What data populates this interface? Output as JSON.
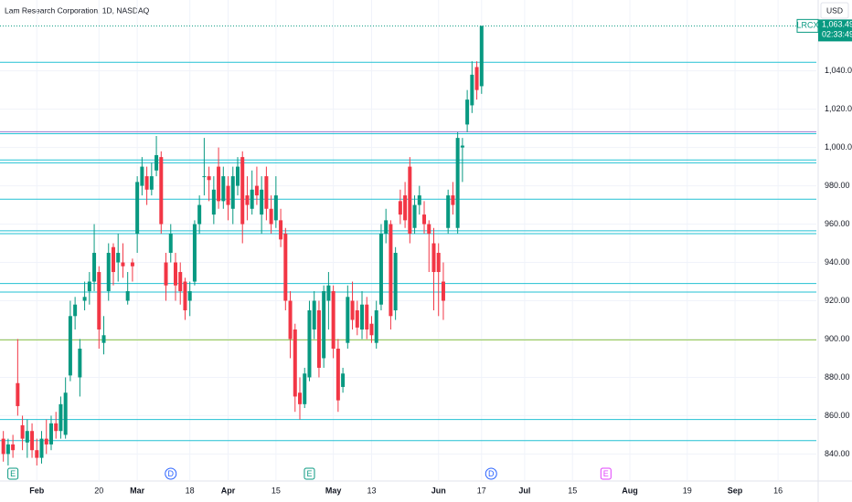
{
  "chart_data": {
    "type": "candlestick",
    "title": "Lam Research Corporation, 1D, NASDAQ",
    "currency": "USD",
    "symbol": "LRCX",
    "last_price": {
      "value": 1063.49,
      "label": "1,063.49"
    },
    "countdown": "02:33:49",
    "up_color": "#089981",
    "down_color": "#f23645",
    "ylim": [
      834,
      1077
    ],
    "xlim": [
      -0.7,
      170
    ],
    "yticks": [
      {
        "value": 840,
        "label": "840.00"
      },
      {
        "value": 860,
        "label": "860.00"
      },
      {
        "value": 880,
        "label": "880.00"
      },
      {
        "value": 900,
        "label": "900.00"
      },
      {
        "value": 920,
        "label": "920.00"
      },
      {
        "value": 940,
        "label": "940.00"
      },
      {
        "value": 960,
        "label": "960.00"
      },
      {
        "value": 980,
        "label": "980.00"
      },
      {
        "value": 1000,
        "label": "1,000.00"
      },
      {
        "value": 1020,
        "label": "1,020.00"
      },
      {
        "value": 1040,
        "label": "1,040.00"
      }
    ],
    "xticks": [
      {
        "value": 7,
        "label": "Feb"
      },
      {
        "value": 20,
        "label": "20"
      },
      {
        "value": 28,
        "label": "Mar"
      },
      {
        "value": 39,
        "label": "18"
      },
      {
        "value": 47,
        "label": "Apr"
      },
      {
        "value": 57,
        "label": "15"
      },
      {
        "value": 69,
        "label": "May"
      },
      {
        "value": 77,
        "label": "13"
      },
      {
        "value": 91,
        "label": "Jun"
      },
      {
        "value": 100,
        "label": "17"
      },
      {
        "value": 109,
        "label": "Jul"
      },
      {
        "value": 119,
        "label": "15"
      },
      {
        "value": 131,
        "label": "Aug"
      },
      {
        "value": 143,
        "label": "19"
      },
      {
        "value": 153,
        "label": "Sep"
      },
      {
        "value": 162,
        "label": "16"
      }
    ],
    "grid": true,
    "candles": [
      [
        848,
        852,
        836,
        840
      ],
      [
        840,
        848,
        834,
        845
      ],
      [
        845,
        850,
        838,
        842
      ],
      [
        877,
        900,
        860,
        865
      ],
      [
        855,
        860,
        842,
        848
      ],
      [
        846,
        858,
        838,
        852
      ],
      [
        852,
        856,
        838,
        842
      ],
      [
        842,
        848,
        834,
        838
      ],
      [
        838,
        852,
        835,
        848
      ],
      [
        848,
        858,
        840,
        845
      ],
      [
        845,
        860,
        842,
        856
      ],
      [
        856,
        862,
        848,
        852
      ],
      [
        852,
        870,
        848,
        866
      ],
      [
        850,
        880,
        848,
        872
      ],
      [
        881,
        920,
        878,
        912
      ],
      [
        912,
        922,
        905,
        918
      ],
      [
        880,
        900,
        870,
        895
      ],
      [
        920,
        930,
        915,
        922
      ],
      [
        925,
        935,
        918,
        930
      ],
      [
        930,
        960,
        925,
        945
      ],
      [
        935,
        938,
        895,
        905
      ],
      [
        898,
        912,
        892,
        902
      ],
      [
        925,
        950,
        920,
        945
      ],
      [
        948,
        950,
        928,
        935
      ],
      [
        940,
        955,
        930,
        945
      ],
      [
        940,
        950,
        932,
        938
      ],
      [
        920,
        935,
        918,
        925
      ],
      [
        940,
        942,
        930,
        938
      ],
      [
        955,
        985,
        945,
        982
      ],
      [
        980,
        995,
        975,
        990
      ],
      [
        985,
        990,
        970,
        978
      ],
      [
        978,
        992,
        975,
        985
      ],
      [
        988,
        1006,
        985,
        996
      ],
      [
        995,
        998,
        955,
        960
      ],
      [
        940,
        945,
        920,
        928
      ],
      [
        945,
        960,
        940,
        955
      ],
      [
        940,
        945,
        920,
        928
      ],
      [
        935,
        940,
        918,
        925
      ],
      [
        930,
        932,
        910,
        915
      ],
      [
        920,
        930,
        912,
        925
      ],
      [
        930,
        962,
        928,
        960
      ],
      [
        960,
        975,
        955,
        970
      ],
      [
        985,
        1005,
        975,
        985
      ],
      [
        985,
        990,
        972,
        983
      ],
      [
        965,
        985,
        960,
        978
      ],
      [
        990,
        1000,
        968,
        972
      ],
      [
        972,
        990,
        968,
        985
      ],
      [
        980,
        985,
        962,
        970
      ],
      [
        968,
        990,
        960,
        985
      ],
      [
        980,
        995,
        975,
        990
      ],
      [
        995,
        998,
        950,
        960
      ],
      [
        975,
        985,
        962,
        970
      ],
      [
        968,
        988,
        965,
        978
      ],
      [
        980,
        990,
        970,
        975
      ],
      [
        965,
        985,
        955,
        978
      ],
      [
        985,
        990,
        962,
        968
      ],
      [
        968,
        975,
        955,
        960
      ],
      [
        962,
        985,
        958,
        975
      ],
      [
        962,
        968,
        948,
        952
      ],
      [
        955,
        958,
        915,
        920
      ],
      [
        920,
        925,
        890,
        900
      ],
      [
        905,
        908,
        862,
        870
      ],
      [
        872,
        880,
        858,
        866
      ],
      [
        866,
        885,
        864,
        882
      ],
      [
        880,
        920,
        878,
        915
      ],
      [
        905,
        925,
        900,
        920
      ],
      [
        915,
        920,
        880,
        885
      ],
      [
        890,
        928,
        885,
        925
      ],
      [
        920,
        935,
        905,
        928
      ],
      [
        925,
        928,
        890,
        895
      ],
      [
        895,
        900,
        862,
        868
      ],
      [
        875,
        885,
        872,
        882
      ],
      [
        898,
        928,
        895,
        922
      ],
      [
        920,
        930,
        905,
        910
      ],
      [
        915,
        920,
        902,
        906
      ],
      [
        905,
        925,
        900,
        918
      ],
      [
        918,
        922,
        900,
        905
      ],
      [
        908,
        912,
        898,
        902
      ],
      [
        898,
        920,
        895,
        915
      ],
      [
        918,
        960,
        915,
        955
      ],
      [
        955,
        968,
        950,
        962
      ],
      [
        960,
        962,
        905,
        912
      ],
      [
        915,
        948,
        910,
        945
      ],
      [
        972,
        978,
        960,
        965
      ],
      [
        975,
        982,
        958,
        962
      ],
      [
        990,
        995,
        950,
        955
      ],
      [
        958,
        975,
        955,
        970
      ],
      [
        970,
        980,
        965,
        975
      ],
      [
        965,
        972,
        955,
        960
      ],
      [
        960,
        962,
        935,
        955
      ],
      [
        950,
        958,
        915,
        935
      ],
      [
        945,
        950,
        912,
        935
      ],
      [
        930,
        940,
        910,
        920
      ],
      [
        958,
        978,
        955,
        975
      ],
      [
        975,
        982,
        965,
        970
      ],
      [
        958,
        1008,
        955,
        1005
      ],
      [
        1000,
        1005,
        982,
        1001
      ],
      [
        1012,
        1030,
        1008,
        1025
      ],
      [
        1022,
        1045,
        1018,
        1038
      ],
      [
        1042,
        1045,
        1025,
        1030
      ],
      [
        1032,
        1063.49,
        1028,
        1063.49
      ]
    ],
    "levels": [
      {
        "value": 1044.5,
        "color": "#22c1d3"
      },
      {
        "value": 1008.2,
        "color": "#9575cd"
      },
      {
        "value": 1007.2,
        "color": "#22c1d3"
      },
      {
        "value": 993.5,
        "color": "#22c1d3"
      },
      {
        "value": 992,
        "color": "#22c1d3"
      },
      {
        "value": 973,
        "color": "#22c1d3"
      },
      {
        "value": 956.5,
        "color": "#22c1d3"
      },
      {
        "value": 955,
        "color": "#22c1d3"
      },
      {
        "value": 929,
        "color": "#22c1d3"
      },
      {
        "value": 924.5,
        "color": "#22c1d3"
      },
      {
        "value": 899.6,
        "color": "#8bc34a"
      },
      {
        "value": 858,
        "color": "#22c1d3"
      },
      {
        "value": 847,
        "color": "#22c1d3"
      }
    ],
    "markers": [
      {
        "label": "E",
        "x": 2,
        "color": "#089981"
      },
      {
        "label": "D",
        "x": 35,
        "color": "#2962ff"
      },
      {
        "label": "E",
        "x": 64,
        "color": "#089981"
      },
      {
        "label": "D",
        "x": 102,
        "color": "#2962ff"
      },
      {
        "label": "E",
        "x": 126,
        "color": "#e040fb"
      }
    ]
  }
}
